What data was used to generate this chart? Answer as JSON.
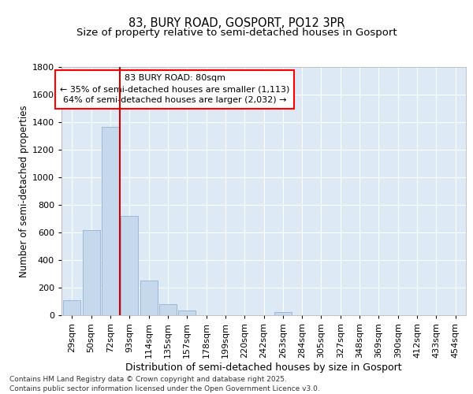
{
  "title_line1": "83, BURY ROAD, GOSPORT, PO12 3PR",
  "title_line2": "Size of property relative to semi-detached houses in Gosport",
  "xlabel": "Distribution of semi-detached houses by size in Gosport",
  "ylabel": "Number of semi-detached properties",
  "categories": [
    "29sqm",
    "50sqm",
    "72sqm",
    "93sqm",
    "114sqm",
    "135sqm",
    "157sqm",
    "178sqm",
    "199sqm",
    "220sqm",
    "242sqm",
    "263sqm",
    "284sqm",
    "305sqm",
    "327sqm",
    "348sqm",
    "369sqm",
    "390sqm",
    "412sqm",
    "433sqm",
    "454sqm"
  ],
  "bar_values": [
    110,
    615,
    1365,
    720,
    250,
    80,
    35,
    0,
    0,
    0,
    0,
    25,
    0,
    0,
    0,
    0,
    0,
    0,
    0,
    0,
    0
  ],
  "bar_color": "#c5d8ec",
  "bar_edge_color": "#9ab8d8",
  "vline_x": 2.5,
  "vline_color": "#cc0000",
  "annotation_text_line1": "83 BURY ROAD: 80sqm",
  "annotation_text_line2": "← 35% of semi-detached houses are smaller (1,113)",
  "annotation_text_line3": "64% of semi-detached houses are larger (2,032) →",
  "ylim": [
    0,
    1800
  ],
  "yticks": [
    0,
    200,
    400,
    600,
    800,
    1000,
    1200,
    1400,
    1600,
    1800
  ],
  "bg_color": "#ddeaf6",
  "grid_color": "#ffffff",
  "footer": "Contains HM Land Registry data © Crown copyright and database right 2025.\nContains public sector information licensed under the Open Government Licence v3.0.",
  "title1_fontsize": 10.5,
  "title2_fontsize": 9.5,
  "ylabel_fontsize": 8.5,
  "xlabel_fontsize": 9,
  "tick_fontsize": 8,
  "annot_fontsize": 8,
  "footer_fontsize": 6.5
}
